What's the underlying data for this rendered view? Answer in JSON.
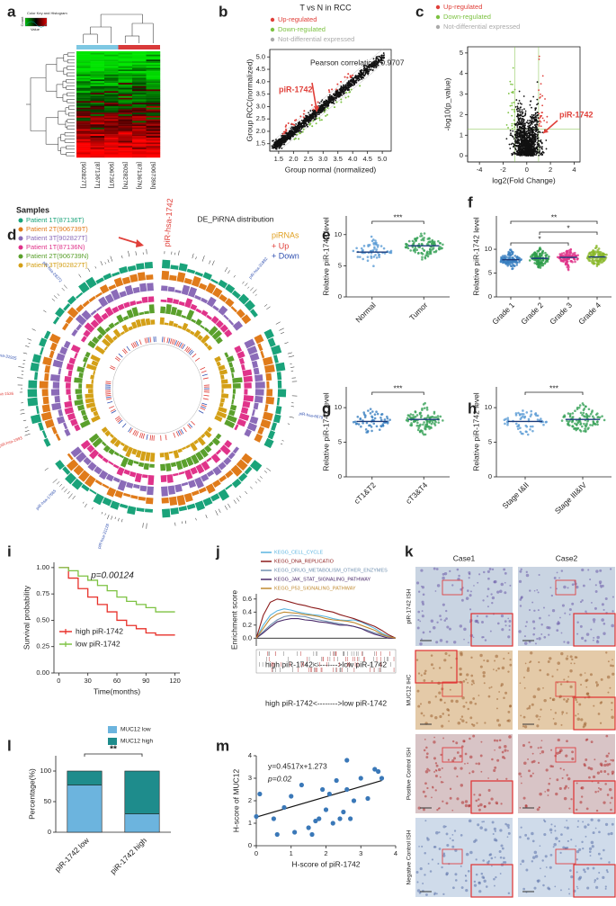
{
  "chart_data": [
    {
      "label": "a",
      "type": "heatmap",
      "color_key_title": "Color Key and Histogram",
      "color_key_ylabel": "Count",
      "color_key_xlabel": "Value",
      "categories": [
        "[902827T]",
        "[871367T]",
        "[906739T]",
        "[902827N]",
        "[871367N]",
        "[906739N]"
      ],
      "group_colors": [
        "#7ec8e3",
        "#d93a3a"
      ]
    },
    {
      "label": "b",
      "type": "scatter",
      "title": "T vs N in RCC",
      "legend": [
        {
          "name": "Up-regulated",
          "color": "#e0403a"
        },
        {
          "name": "Down-regulated",
          "color": "#7dc242"
        },
        {
          "name": "Not-differential expressed",
          "color": "#aaaaaa"
        }
      ],
      "annotations": [
        "Pearson correlation: 0.9707",
        "piR-1742"
      ],
      "xlabel": "Group normal (normalized)",
      "ylabel": "Group RCC(normalized)",
      "xlim": [
        1.2,
        5.3
      ],
      "ylim": [
        1.2,
        5.3
      ],
      "xticks": [
        1.5,
        {
          "value": 2,
          "label": "2.0"
        },
        2.5,
        {
          "value": 3,
          "label": "3.0"
        },
        3.5,
        {
          "value": 4,
          "label": "4.0"
        },
        4.5,
        {
          "value": 5,
          "label": "5.0"
        }
      ],
      "yticks": [
        1.5,
        {
          "value": 2,
          "label": "2.0"
        },
        2.5,
        {
          "value": 3,
          "label": "3.0"
        },
        3.5,
        {
          "value": 4,
          "label": "4.0"
        },
        4.5,
        {
          "value": 5,
          "label": "5.0"
        }
      ]
    },
    {
      "label": "c",
      "type": "volcano",
      "legend": [
        {
          "name": "Up-regulated",
          "color": "#e0403a"
        },
        {
          "name": "Down-regulated",
          "color": "#7dc242"
        },
        {
          "name": "Not-differential expressed",
          "color": "#aaaaaa"
        }
      ],
      "annotations": [
        "piR-1742"
      ],
      "xlabel": "log2(Fold Change)",
      "ylabel": "-log10(p_value)",
      "xlim": [
        -5,
        4.5
      ],
      "ylim": [
        -0.3,
        5.3
      ],
      "xticks": [
        -4,
        -2,
        0,
        2,
        4
      ],
      "yticks": [
        0,
        1,
        2,
        3,
        4,
        5
      ]
    },
    {
      "label": "d",
      "type": "circos",
      "samples_title": "Samples",
      "samples": [
        {
          "name": "Patient 1T(87136T)",
          "color": "#1aa37a"
        },
        {
          "name": "Patient 2T(906739T)",
          "color": "#e07b1a"
        },
        {
          "name": "Patient 3T[902827T]",
          "color": "#8b6bb8"
        },
        {
          "name": "Patient 1T(87136N)",
          "color": "#e0338a"
        },
        {
          "name": "Patient 2T(906739N)",
          "color": "#5aa02c"
        },
        {
          "name": "Patient 3T[902827T]",
          "color": "#d4a017"
        }
      ],
      "title": "DE_PiRNA distribution",
      "legend_title": "piRNAs",
      "legend": [
        {
          "name": "+ Up",
          "color": "#e0403a"
        },
        {
          "name": "+ Down",
          "color": "#3050b0"
        }
      ],
      "highlight": "piR-hsa-1742",
      "labels": [
        {
          "text": "piR-hsa-31882",
          "color": "#3050b0"
        },
        {
          "text": "piR-hsa-6679",
          "color": "#3050b0"
        },
        {
          "text": "piR-hsa-31128",
          "color": "#3050b0"
        },
        {
          "text": "piR-hsa-17665",
          "color": "#3050b0"
        },
        {
          "text": "piR-hsa-1993",
          "color": "#e0403a"
        },
        {
          "text": "piR-hsa-1536",
          "color": "#e0403a"
        },
        {
          "text": "piR-hsa-31925",
          "color": "#3050b0"
        },
        {
          "text": "piR-hsa-28372",
          "color": "#3050b0"
        }
      ]
    },
    {
      "label": "e",
      "type": "dotplot",
      "ylabel": "Relative piR-1742 level",
      "categories": [
        "Normal",
        "Tumor"
      ],
      "values": [
        7.2,
        8.2
      ],
      "colors": [
        "#5a9bd5",
        "#3aa35a"
      ],
      "ylim": [
        0,
        13
      ],
      "yticks": [
        0,
        5,
        10
      ],
      "annotations": [
        {
          "text": "***",
          "groups": [
            "Normal",
            "Tumor"
          ]
        }
      ]
    },
    {
      "label": "f",
      "type": "dotplot",
      "ylabel": "Relative piR-1742 level",
      "categories": [
        "Grade 1",
        "Grade 2",
        "Grade 3",
        "Grade 4"
      ],
      "values": [
        7.8,
        8.1,
        8.3,
        8.4
      ],
      "colors": [
        "#3a7fc0",
        "#2e9e4a",
        "#e0358a",
        "#8ab82a"
      ],
      "ylim": [
        0,
        17
      ],
      "yticks": [
        0,
        5,
        10
      ],
      "annotations": [
        {
          "text": "**",
          "groups": [
            "Grade 1",
            "Grade 4"
          ]
        },
        {
          "text": "*",
          "groups": [
            "Grade 2",
            "Grade 4"
          ]
        },
        {
          "text": "*",
          "groups": [
            "Grade 1",
            "Grade 3"
          ]
        }
      ]
    },
    {
      "label": "g",
      "type": "dotplot",
      "ylabel": "Relative piR-1742 level",
      "categories": [
        "cT1&T2",
        "cT3&T4"
      ],
      "values": [
        8.0,
        8.3
      ],
      "colors": [
        "#3a7fc0",
        "#3aa35a"
      ],
      "ylim": [
        0,
        13
      ],
      "yticks": [
        0,
        5,
        10
      ],
      "annotations": [
        {
          "text": "***",
          "groups": [
            "cT1&T2",
            "cT3&T4"
          ]
        }
      ]
    },
    {
      "label": "h",
      "type": "dotplot",
      "ylabel": "Relative piR-1742 level",
      "categories": [
        "Stage I&II",
        "Stage III&IV"
      ],
      "values": [
        8.0,
        8.3
      ],
      "colors": [
        "#5a9bd5",
        "#3aa35a"
      ],
      "ylim": [
        0,
        13
      ],
      "yticks": [
        0,
        5,
        10
      ],
      "annotations": [
        {
          "text": "***",
          "groups": [
            "Stage I&II",
            "Stage III&IV"
          ]
        }
      ]
    },
    {
      "label": "i",
      "type": "survival",
      "annotation": "p=0.00124",
      "ylabel": "Survival probability",
      "xlabel": "Time(months)",
      "xlim": [
        -5,
        125
      ],
      "ylim": [
        0,
        1.05
      ],
      "xticks": [
        0,
        30,
        60,
        90,
        120
      ],
      "yticks": [
        {
          "value": 0,
          "label": "0.00"
        },
        {
          "value": 0.25,
          "label": "0.25"
        },
        {
          "value": 0.5,
          "label": "0.50"
        },
        {
          "value": 0.75,
          "label": "0.75"
        },
        {
          "value": 1,
          "label": "1.00"
        }
      ],
      "x": [
        0,
        10,
        20,
        30,
        40,
        50,
        60,
        70,
        80,
        90,
        100,
        110,
        120
      ],
      "series": [
        {
          "name": "high piR-1742",
          "color": "#e8312a",
          "values": [
            1,
            0.9,
            0.8,
            0.72,
            0.65,
            0.58,
            0.5,
            0.45,
            0.42,
            0.38,
            0.36,
            0.36,
            0.36
          ]
        },
        {
          "name": "low piR-1742",
          "color": "#7dc242",
          "values": [
            1,
            0.97,
            0.92,
            0.88,
            0.83,
            0.78,
            0.72,
            0.68,
            0.65,
            0.62,
            0.58,
            0.58,
            0.58
          ]
        }
      ]
    },
    {
      "label": "j",
      "type": "enrichment",
      "ylabel": "Enrichment score",
      "xlabel": "high piR-1742<-------->low piR-1742",
      "xlim": [
        0,
        100
      ],
      "ylim": [
        -0.12,
        0.68
      ],
      "yticks": [
        {
          "value": 0,
          "label": "0.0"
        },
        0.2,
        0.4,
        0.6
      ],
      "x": [
        0,
        5,
        10,
        15,
        20,
        25,
        30,
        35,
        40,
        45,
        50,
        55,
        60,
        65,
        70,
        75,
        80,
        85,
        90,
        95,
        100
      ],
      "series": [
        {
          "name": "KEGG_CELL_CYCLE",
          "color": "#5ab4e0",
          "values": [
            0,
            0.2,
            0.35,
            0.42,
            0.45,
            0.43,
            0.4,
            0.38,
            0.36,
            0.35,
            0.33,
            0.3,
            0.28,
            0.27,
            0.28,
            0.25,
            0.2,
            0.15,
            0.08,
            0.03,
            0
          ]
        },
        {
          "name": "KEGG_DNA_REPLICATIO",
          "color": "#8b1a1a",
          "values": [
            0,
            0.35,
            0.55,
            0.6,
            0.58,
            0.55,
            0.52,
            0.5,
            0.47,
            0.45,
            0.42,
            0.4,
            0.36,
            0.33,
            0.3,
            0.26,
            0.22,
            0.18,
            0.12,
            0.05,
            0
          ]
        },
        {
          "name": "KEGG_DRUG_METABOLISM_OTHER_ENZYMES",
          "color": "#7090b0",
          "values": [
            0,
            0.1,
            0.2,
            0.28,
            0.33,
            0.35,
            0.34,
            0.33,
            0.3,
            0.28,
            0.26,
            0.24,
            0.22,
            0.2,
            0.18,
            0.15,
            0.12,
            0.08,
            0.05,
            0.02,
            0
          ]
        },
        {
          "name": "KEGG_JAK_STAT_SIGNALING_PATHWAY",
          "color": "#4a2a6a",
          "values": [
            0,
            0.08,
            0.17,
            0.25,
            0.28,
            0.3,
            0.3,
            0.28,
            0.27,
            0.25,
            0.24,
            0.22,
            0.2,
            0.2,
            0.18,
            0.15,
            0.1,
            0.06,
            0.03,
            0,
            0
          ]
        },
        {
          "name": "KEGG_P53_SIGNALING_PATHWAY",
          "color": "#c08a30",
          "values": [
            0,
            0.15,
            0.3,
            0.37,
            0.4,
            0.39,
            0.38,
            0.36,
            0.35,
            0.33,
            0.3,
            0.28,
            0.27,
            0.26,
            0.24,
            0.2,
            0.16,
            0.12,
            0.06,
            0.02,
            0
          ]
        }
      ]
    },
    {
      "label": "k",
      "type": "images",
      "columns": [
        "Case1",
        "Case2"
      ],
      "rows": [
        "piR-1742 ISH",
        "MUC12 IHC",
        "Positive Control ISH",
        "Negative Control ISH"
      ]
    },
    {
      "label": "l",
      "type": "bar",
      "ylabel": "Percentage(%)",
      "categories": [
        "piR-1742 low",
        "piR-1742 high"
      ],
      "ylim": [
        0,
        125
      ],
      "yticks": [
        0,
        50,
        100
      ],
      "series": [
        {
          "name": "MUC12 low",
          "color": "#6cb4de",
          "values": [
            77,
            30
          ]
        },
        {
          "name": "MUC12 high",
          "color": "#1e8c8c",
          "values": [
            23,
            70
          ]
        }
      ],
      "annotations": [
        {
          "text": "**",
          "groups": [
            "piR-1742 low",
            "piR-1742 high"
          ]
        }
      ]
    },
    {
      "label": "m",
      "type": "scatter",
      "annotations": [
        "y=0.4517x+1.273",
        "p=0.02"
      ],
      "fit": {
        "slope": 0.4517,
        "intercept": 1.273
      },
      "xlabel": "H-score of piR-1742",
      "ylabel": "H-score of MUC12",
      "xlim": [
        0,
        4
      ],
      "ylim": [
        0,
        4
      ],
      "xticks": [
        0,
        1,
        2,
        3,
        4
      ],
      "yticks": [
        0,
        1,
        2,
        3,
        4
      ],
      "color": "#3a78b8",
      "x": [
        0,
        0.1,
        0.5,
        0.6,
        0.8,
        1.0,
        1.1,
        1.3,
        1.5,
        1.6,
        1.7,
        1.8,
        1.9,
        2.0,
        2.1,
        2.2,
        2.3,
        2.4,
        2.5,
        2.6,
        2.7,
        2.8,
        3.0,
        3.2,
        3.4,
        3.5,
        3.6,
        2.6
      ],
      "values": [
        1.3,
        2.3,
        1.2,
        0.5,
        1.7,
        2.2,
        0.6,
        2.7,
        0.8,
        0.5,
        1.1,
        1.2,
        2.5,
        1.6,
        2.3,
        1.0,
        2.9,
        1.2,
        1.5,
        3.8,
        1.2,
        2.0,
        3.0,
        2.1,
        3.4,
        3.3,
        3.0,
        2.5
      ]
    }
  ]
}
